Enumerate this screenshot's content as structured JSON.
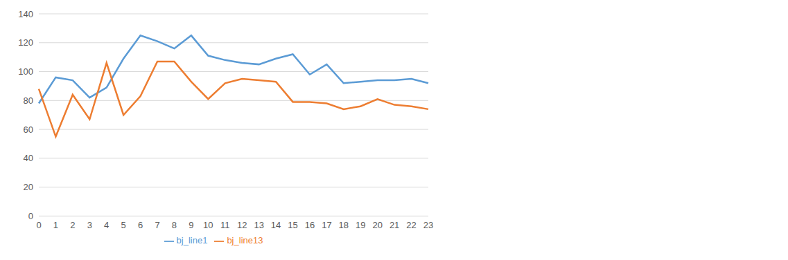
{
  "chart_data": {
    "type": "line",
    "categories": [
      "0",
      "1",
      "2",
      "3",
      "4",
      "5",
      "6",
      "7",
      "8",
      "9",
      "10",
      "11",
      "12",
      "13",
      "14",
      "15",
      "16",
      "17",
      "18",
      "19",
      "20",
      "21",
      "22",
      "23"
    ],
    "series": [
      {
        "name": "bj_line1",
        "color": "#5b9bd5",
        "values": [
          78,
          96,
          94,
          82,
          89,
          109,
          125,
          121,
          116,
          125,
          111,
          108,
          106,
          105,
          109,
          112,
          98,
          105,
          92,
          93,
          94,
          94,
          95,
          92
        ]
      },
      {
        "name": "bj_line13",
        "color": "#ed7d31",
        "values": [
          88,
          55,
          84,
          67,
          106,
          70,
          83,
          107,
          107,
          93,
          81,
          92,
          95,
          94,
          93,
          79,
          79,
          78,
          74,
          76,
          81,
          77,
          76,
          74
        ]
      }
    ],
    "ylim": [
      0,
      140
    ],
    "yticks": [
      0,
      20,
      40,
      60,
      80,
      100,
      120,
      140
    ],
    "grid": true,
    "legend": "bottom"
  }
}
